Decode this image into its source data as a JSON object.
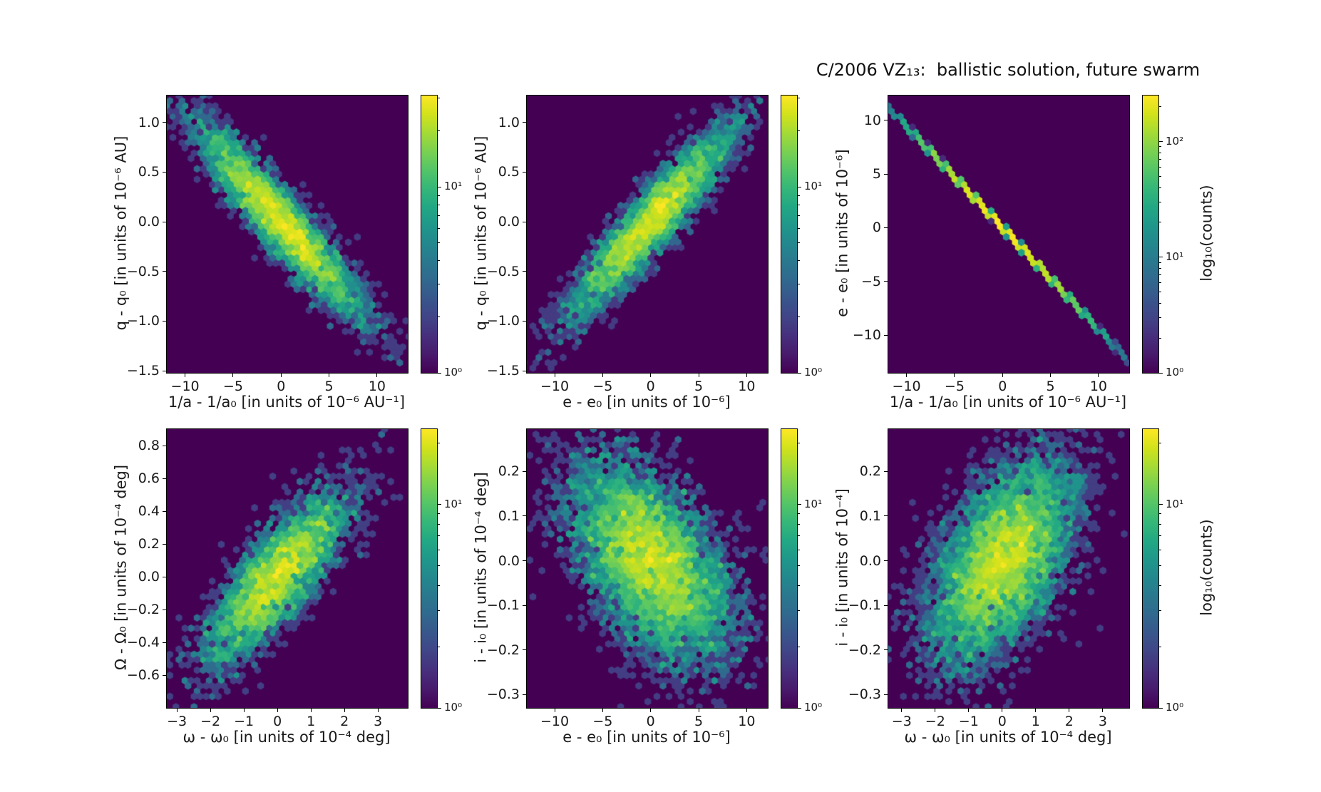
{
  "title": "C/2006 VZ₁₃:  ballistic solution, future swarm",
  "chart_data": {
    "type": "hexbin",
    "colormap": "viridis",
    "background_color": "#440154",
    "colorbar_label": "log₁₀(counts)",
    "layout": "2 rows x 3 columns of hexbin density maps, each with its own log-scaled colorbar",
    "panels": [
      {
        "name": "q-vs-inverse-a",
        "xlabel": "1/a - 1/a₀ [in units of 10⁻⁶ AU⁻¹]",
        "ylabel": "q - q₀ [in units of 10⁻⁶ AU]",
        "xlim": [
          -11.9,
          13.2
        ],
        "ylim": [
          -1.52,
          1.27
        ],
        "xticks": [
          {
            "v": -10,
            "label": "−10"
          },
          {
            "v": -5,
            "label": "−5"
          },
          {
            "v": 0,
            "label": "0"
          },
          {
            "v": 5,
            "label": "5"
          },
          {
            "v": 10,
            "label": "10"
          }
        ],
        "yticks": [
          {
            "v": 1.0,
            "label": "1.0"
          },
          {
            "v": 0.5,
            "label": "0.5"
          },
          {
            "v": 0.0,
            "label": "0.0"
          },
          {
            "v": -0.5,
            "label": "−0.5"
          },
          {
            "v": -1.0,
            "label": "−1.0"
          },
          {
            "v": -1.5,
            "label": "−1.5"
          }
        ],
        "correlation": "negative elongated gaussian cloud",
        "distribution": {
          "center": [
            0,
            0
          ],
          "sigma_x": 4.2,
          "slope": -0.104,
          "sigma_residual": 0.18,
          "n_points": 4500,
          "seed": 101
        },
        "colorbar": {
          "vmax": 31,
          "ticks": [
            {
              "value": 10,
              "label": "10¹"
            },
            {
              "value": 1,
              "label": "10⁰"
            }
          ]
        }
      },
      {
        "name": "q-vs-e",
        "xlabel": "e - e₀ [in units of 10⁻⁶]",
        "ylabel": "q - q₀ [in units of 10⁻⁶ AU]",
        "xlim": [
          -12.9,
          12.2
        ],
        "ylim": [
          -1.52,
          1.27
        ],
        "xticks": [
          {
            "v": -10,
            "label": "−10"
          },
          {
            "v": -5,
            "label": "−5"
          },
          {
            "v": 0,
            "label": "0"
          },
          {
            "v": 5,
            "label": "5"
          },
          {
            "v": 10,
            "label": "10"
          }
        ],
        "yticks": [
          {
            "v": 1.0,
            "label": "1.0"
          },
          {
            "v": 0.5,
            "label": "0.5"
          },
          {
            "v": 0.0,
            "label": "0.0"
          },
          {
            "v": -0.5,
            "label": "−0.5"
          },
          {
            "v": -1.0,
            "label": "−1.0"
          },
          {
            "v": -1.5,
            "label": "−1.5"
          }
        ],
        "correlation": "positive elongated gaussian cloud",
        "distribution": {
          "center": [
            0,
            0
          ],
          "sigma_x": 4.2,
          "slope": 0.104,
          "sigma_residual": 0.18,
          "n_points": 4500,
          "seed": 202
        },
        "colorbar": {
          "vmax": 31,
          "ticks": [
            {
              "value": 10,
              "label": "10¹"
            },
            {
              "value": 1,
              "label": "10⁰"
            }
          ]
        }
      },
      {
        "name": "e-vs-inverse-a",
        "xlabel": "1/a - 1/a₀ [in units of 10⁻⁶ AU⁻¹]",
        "ylabel": "e - e₀ [in units of 10⁻⁶]",
        "xlim": [
          -11.9,
          13.2
        ],
        "ylim": [
          -13.5,
          12.3
        ],
        "xticks": [
          {
            "v": -10,
            "label": "−10"
          },
          {
            "v": -5,
            "label": "−5"
          },
          {
            "v": 0,
            "label": "0"
          },
          {
            "v": 5,
            "label": "5"
          },
          {
            "v": 10,
            "label": "10"
          }
        ],
        "yticks": [
          {
            "v": 10,
            "label": "10"
          },
          {
            "v": 5,
            "label": "5"
          },
          {
            "v": 0,
            "label": "0"
          },
          {
            "v": -5,
            "label": "−5"
          },
          {
            "v": -10,
            "label": "−10"
          }
        ],
        "correlation": "near-perfect negative linear relation (thin diagonal line)",
        "distribution": {
          "center": [
            0,
            0
          ],
          "sigma_x": 4.5,
          "slope": -0.945,
          "sigma_residual": 0.05,
          "n_points": 6000,
          "seed": 303
        },
        "colorbar": {
          "vmax": 250,
          "ticks": [
            {
              "value": 100,
              "label": "10²"
            },
            {
              "value": 10,
              "label": "10¹"
            },
            {
              "value": 1,
              "label": "10⁰"
            }
          ]
        }
      },
      {
        "name": "Omega-vs-omega",
        "xlabel": "ω - ω₀ [in units of 10⁻⁴ deg]",
        "ylabel": "Ω - Ω₀ [in units of 10⁻⁴ deg]",
        "xlim": [
          -3.3,
          3.89
        ],
        "ylim": [
          -0.8,
          0.9
        ],
        "xticks": [
          {
            "v": -3,
            "label": "−3"
          },
          {
            "v": -2,
            "label": "−2"
          },
          {
            "v": -1,
            "label": "−1"
          },
          {
            "v": 0,
            "label": "0"
          },
          {
            "v": 1,
            "label": "1"
          },
          {
            "v": 2,
            "label": "2"
          },
          {
            "v": 3,
            "label": "3"
          }
        ],
        "yticks": [
          {
            "v": 0.8,
            "label": "0.8"
          },
          {
            "v": 0.6,
            "label": "0.6"
          },
          {
            "v": 0.4,
            "label": "0.4"
          },
          {
            "v": 0.2,
            "label": "0.2"
          },
          {
            "v": 0.0,
            "label": "0.0"
          },
          {
            "v": -0.2,
            "label": "−0.2"
          },
          {
            "v": -0.4,
            "label": "−0.4"
          },
          {
            "v": -0.6,
            "label": "−0.6"
          }
        ],
        "correlation": "positive gaussian cloud",
        "distribution": {
          "center": [
            0,
            0
          ],
          "sigma_x": 1.05,
          "slope": 0.2,
          "sigma_residual": 0.155,
          "n_points": 4000,
          "seed": 404
        },
        "colorbar": {
          "vmax": 23.5,
          "ticks": [
            {
              "value": 10,
              "label": "10¹"
            },
            {
              "value": 1,
              "label": "10⁰"
            }
          ]
        }
      },
      {
        "name": "i-vs-e",
        "xlabel": "e - e₀ [in units of 10⁻⁶]",
        "ylabel": "i - i₀ [in units of 10⁻⁴ deg]",
        "xlim": [
          -12.9,
          12.2
        ],
        "ylim": [
          -0.33,
          0.295
        ],
        "xticks": [
          {
            "v": -10,
            "label": "−10"
          },
          {
            "v": -5,
            "label": "−5"
          },
          {
            "v": 0,
            "label": "0"
          },
          {
            "v": 5,
            "label": "5"
          },
          {
            "v": 10,
            "label": "10"
          }
        ],
        "yticks": [
          {
            "v": 0.2,
            "label": "0.2"
          },
          {
            "v": 0.1,
            "label": "0.1"
          },
          {
            "v": 0.0,
            "label": "0.0"
          },
          {
            "v": -0.1,
            "label": "−0.1"
          },
          {
            "v": -0.2,
            "label": "−0.2"
          },
          {
            "v": -0.3,
            "label": "−0.3"
          }
        ],
        "correlation": "loose negative gaussian cloud",
        "distribution": {
          "center": [
            0,
            0
          ],
          "sigma_x": 4.0,
          "slope": -0.014,
          "sigma_residual": 0.095,
          "n_points": 7000,
          "seed": 505
        },
        "colorbar": {
          "vmax": 23.5,
          "ticks": [
            {
              "value": 10,
              "label": "10¹"
            },
            {
              "value": 1,
              "label": "10⁰"
            }
          ]
        }
      },
      {
        "name": "i-vs-omega",
        "xlabel": "ω - ω₀ [in units of 10⁻⁴ deg]",
        "ylabel": "i - i₀ [in units of 10⁻⁴]",
        "xlim": [
          -3.4,
          3.79
        ],
        "ylim": [
          -0.33,
          0.295
        ],
        "xticks": [
          {
            "v": -3,
            "label": "−3"
          },
          {
            "v": -2,
            "label": "−2"
          },
          {
            "v": -1,
            "label": "−1"
          },
          {
            "v": 0,
            "label": "0"
          },
          {
            "v": 1,
            "label": "1"
          },
          {
            "v": 2,
            "label": "2"
          },
          {
            "v": 3,
            "label": "3"
          }
        ],
        "yticks": [
          {
            "v": 0.2,
            "label": "0.2"
          },
          {
            "v": 0.1,
            "label": "0.1"
          },
          {
            "v": 0.0,
            "label": "0.0"
          },
          {
            "v": -0.1,
            "label": "−0.1"
          },
          {
            "v": -0.2,
            "label": "−0.2"
          },
          {
            "v": -0.3,
            "label": "−0.3"
          }
        ],
        "correlation": "loose positive gaussian cloud",
        "distribution": {
          "center": [
            0,
            0
          ],
          "sigma_x": 1.05,
          "slope": 0.055,
          "sigma_residual": 0.095,
          "n_points": 6500,
          "seed": 606
        },
        "colorbar": {
          "vmax": 23.5,
          "ticks": [
            {
              "value": 10,
              "label": "10¹"
            },
            {
              "value": 1,
              "label": "10⁰"
            }
          ]
        }
      }
    ]
  }
}
